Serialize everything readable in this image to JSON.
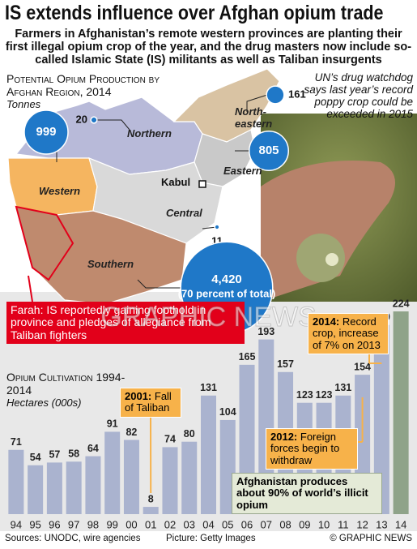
{
  "title": "IS extends influence over Afghan opium trade",
  "subtitle": "Farmers in Afghanistan’s remote western provinces are planting their first illegal opium crop of the year, and the drug masters now include so-called Islamic State (IS) militants as well as Taliban insurgents",
  "watermark": "GRAPHIC NEWS",
  "chart_data": [
    {
      "type": "bubble-map",
      "title": "Potential Opium Production by Afghan Region, 2014",
      "unit": "Tonnes",
      "color": "#1f78c8",
      "regions": [
        "Northern",
        "North-eastern",
        "Eastern",
        "Western",
        "Central",
        "Southern"
      ],
      "values": [
        20,
        161,
        805,
        999,
        11,
        4420
      ],
      "value_labels": [
        "20",
        "161",
        "805",
        "999",
        "11",
        "4,420"
      ],
      "annotations": [
        "(70 percent of total)",
        "Kabul",
        "UN’s drug watchdog says last year’s record poppy crop could be exceeded in 2015",
        "Farah: IS reportedly gaining foothold in province and pledges of allegiance from Taliban fighters"
      ]
    },
    {
      "type": "bar",
      "title": "Opium Cultivation 1994-2014",
      "subtitle": "Hectares (000s)",
      "categories": [
        "94",
        "95",
        "96",
        "97",
        "98",
        "99",
        "00",
        "01",
        "02",
        "03",
        "04",
        "05",
        "06",
        "07",
        "08",
        "09",
        "10",
        "11",
        "12",
        "13",
        "14"
      ],
      "values": [
        71,
        54,
        57,
        58,
        64,
        91,
        82,
        8,
        74,
        80,
        131,
        104,
        165,
        193,
        157,
        123,
        123,
        131,
        154,
        209,
        224
      ],
      "color": "#aab3cf",
      "highlight_color": "#8fa389",
      "annotations": [
        {
          "year": "2001:",
          "text": "Fall of Taliban"
        },
        {
          "year": "2014:",
          "text": "Record crop, increase of 7% on 2013"
        },
        {
          "year": "2012:",
          "text": "Foreign forces begin to withdraw"
        },
        {
          "text": "Afghanistan produces about 90% of world’s illicit opium"
        }
      ]
    }
  ],
  "sources": "Sources: UNODC, wire agencies",
  "picture_credit": "Picture: Getty Images",
  "copyright": "© GRAPHIC NEWS"
}
